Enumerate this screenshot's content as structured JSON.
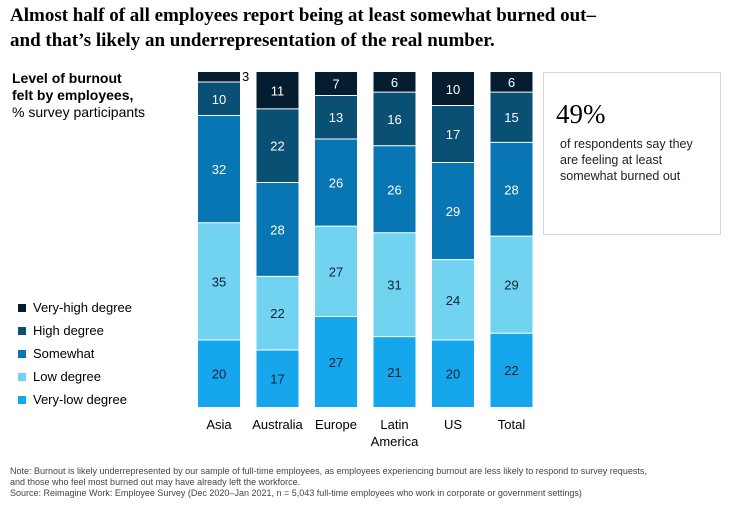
{
  "headline": {
    "line1": "Almost half of all employees report being at least somewhat burned out–",
    "line2": "and that’s likely an underrepresentation of the real number."
  },
  "subtitle": {
    "line1": "Level of burnout",
    "line2": "felt by employees,",
    "line3": "% survey participants"
  },
  "callout": {
    "value": "49%",
    "text": "of respondents say they are feeling at least somewhat burned out"
  },
  "notes": {
    "line1": "Note: Burnout is likely underrepresented by our sample of full-time employees, as employees experiencing burnout are less likely to respond to survey requests,",
    "line2": "and those who feel most burned out may have already left the workforce.",
    "line3": "Source: Reimagine Work: Employee Survey (Dec 2020–Jan 2021, n = 5,043 full-time employees who work in corporate or government settings)"
  },
  "chart_data": {
    "type": "bar",
    "stacked": true,
    "categories": [
      [
        "Asia"
      ],
      [
        "Australia"
      ],
      [
        "Europe"
      ],
      [
        "Latin",
        "America"
      ],
      [
        "US"
      ],
      [
        "Total"
      ]
    ],
    "series": [
      {
        "name": "Very-low degree",
        "color": "#16a6ec",
        "label_color": "#0a2233",
        "values": [
          20,
          17,
          27,
          21,
          20,
          22
        ]
      },
      {
        "name": "Low degree",
        "color": "#72d3f1",
        "label_color": "#0a2233",
        "values": [
          35,
          22,
          27,
          31,
          24,
          29
        ]
      },
      {
        "name": "Somewhat",
        "color": "#0876b3",
        "label_color": "#ffffff",
        "values": [
          32,
          28,
          26,
          26,
          29,
          28
        ]
      },
      {
        "name": "High degree",
        "color": "#0a4f74",
        "label_color": "#ffffff",
        "values": [
          10,
          22,
          13,
          16,
          17,
          15
        ]
      },
      {
        "name": "Very-high degree",
        "color": "#051d30",
        "label_color": "#ffffff",
        "values": [
          3,
          11,
          7,
          6,
          10,
          6
        ]
      }
    ],
    "ylim": [
      0,
      100
    ]
  }
}
